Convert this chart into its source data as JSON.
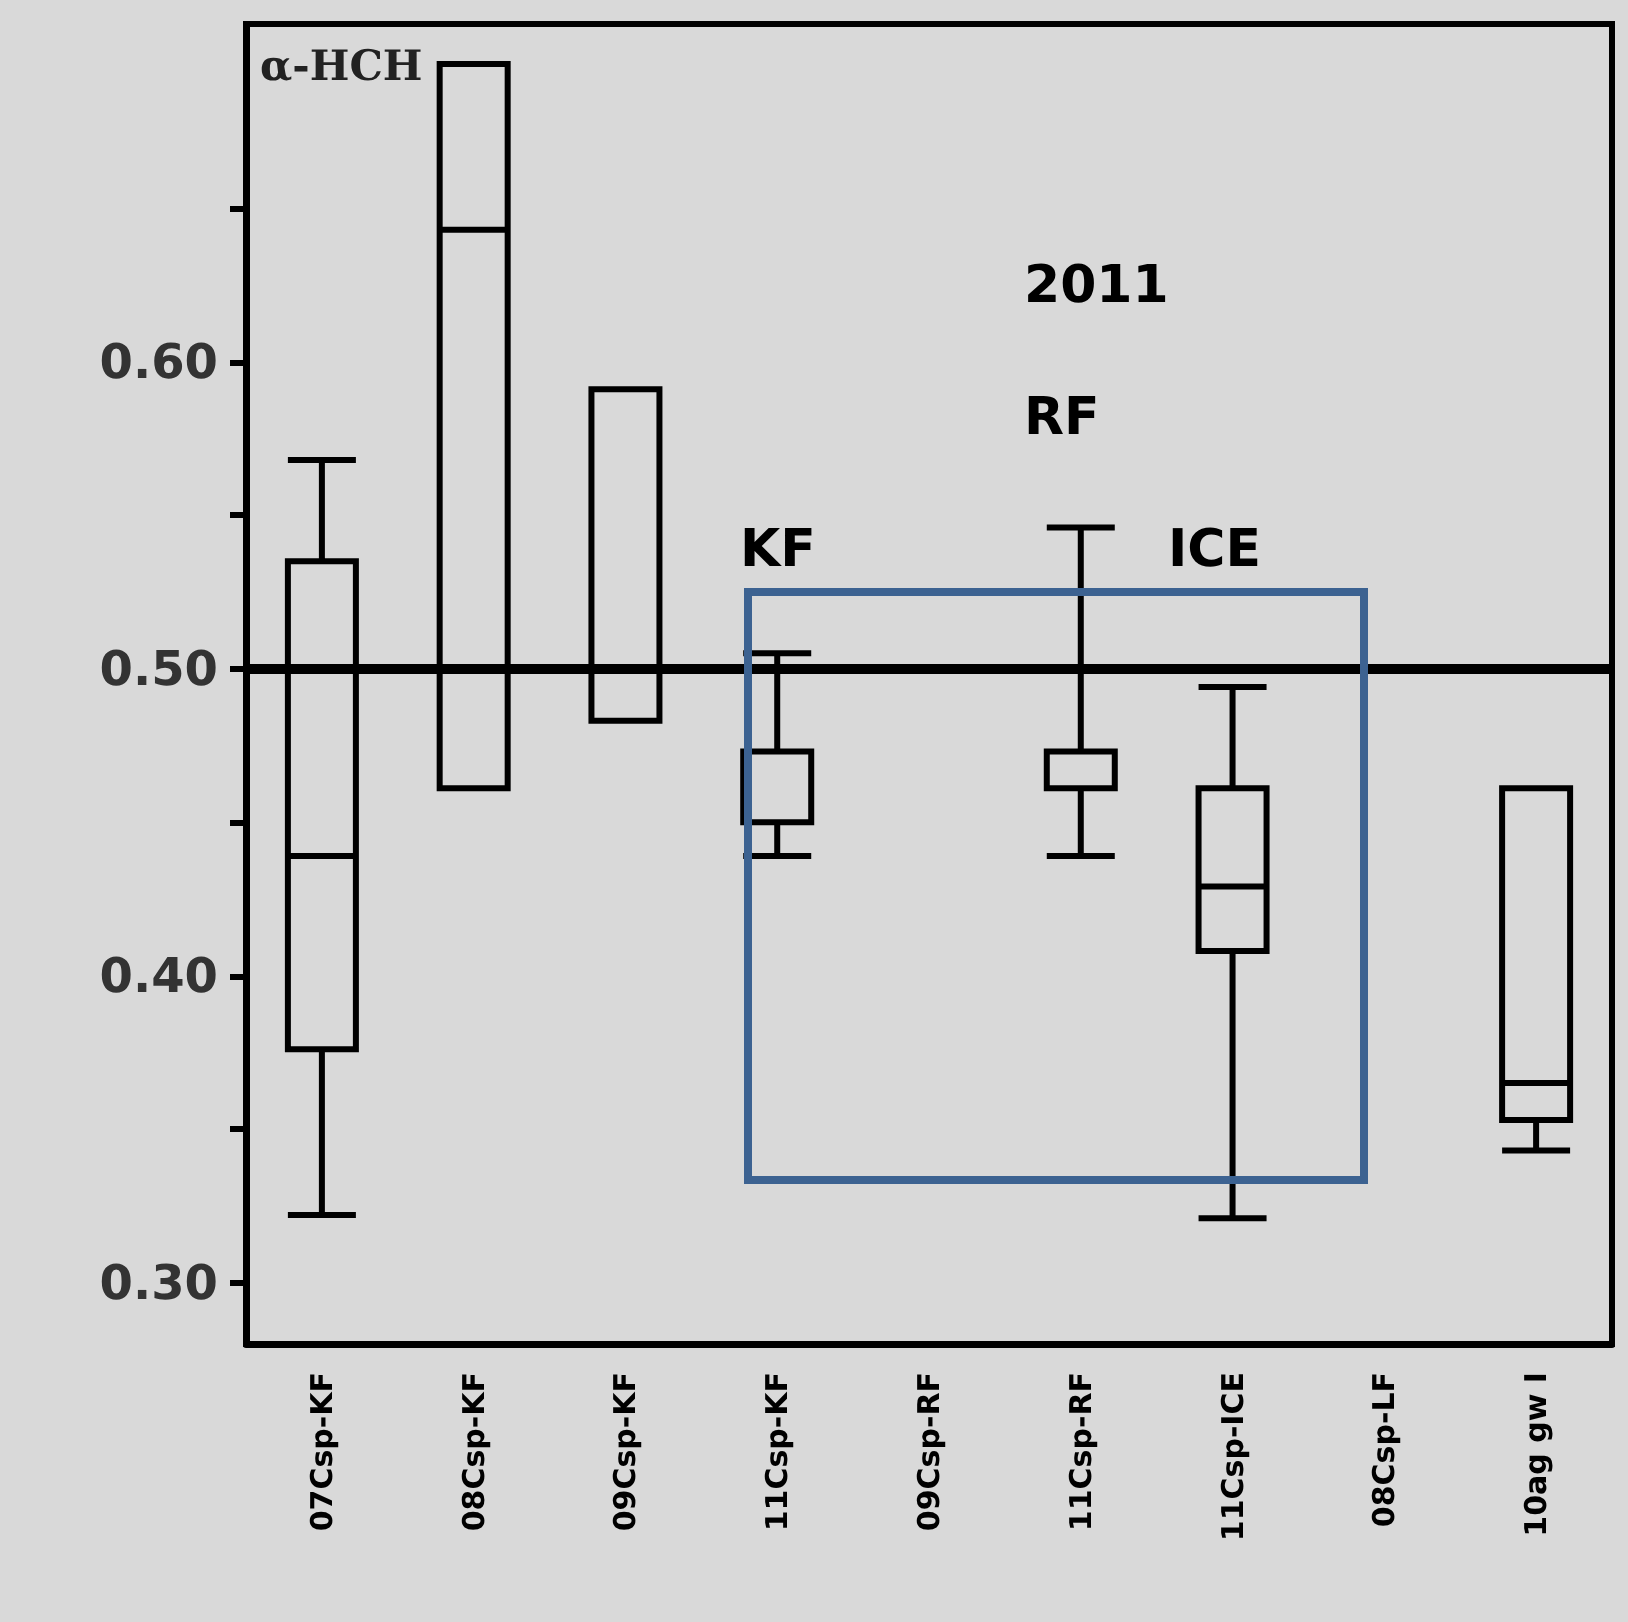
{
  "chart_data": {
    "type": "box",
    "title": "α-HCH",
    "categories": [
      "07Csp-KF",
      "08Csp-KF",
      "09Csp-KF",
      "11Csp-KF",
      "09Csp-RF",
      "11Csp-RF",
      "11Csp-ICE",
      "08Csp-LF",
      "10ag gw I"
    ],
    "boxes": [
      {
        "low": 0.322,
        "q1": 0.376,
        "median": 0.439,
        "q3": 0.535,
        "high": 0.568
      },
      {
        "low": 0.461,
        "q1": 0.461,
        "median": 0.643,
        "q3": 0.697,
        "high": 0.697
      },
      {
        "low": 0.483,
        "q1": 0.483,
        "median": 0.483,
        "q3": 0.591,
        "high": 0.591
      },
      {
        "low": 0.439,
        "q1": 0.45,
        "median": 0.45,
        "q3": 0.473,
        "high": 0.505
      },
      null,
      {
        "low": 0.439,
        "q1": 0.461,
        "median": 0.461,
        "q3": 0.473,
        "high": 0.546
      },
      {
        "low": 0.321,
        "q1": 0.408,
        "median": 0.429,
        "q3": 0.461,
        "high": 0.494
      },
      null,
      {
        "low": 0.343,
        "q1": 0.353,
        "median": 0.365,
        "q3": 0.461,
        "high": 0.461
      }
    ],
    "color": "#000000",
    "ylim": [
      0.28,
      0.71
    ],
    "yticks": [
      {
        "value": 0.3,
        "label": "0.30"
      },
      {
        "value": 0.35,
        "label": null
      },
      {
        "value": 0.4,
        "label": "0.40"
      },
      {
        "value": 0.45,
        "label": null
      },
      {
        "value": 0.5,
        "label": "0.50"
      },
      {
        "value": 0.55,
        "label": null
      },
      {
        "value": 0.6,
        "label": "0.60"
      },
      {
        "value": 0.65,
        "label": null
      }
    ],
    "ref_lines": [
      {
        "axis": "y",
        "value": 0.5,
        "color": "#000000"
      }
    ],
    "annotations": [
      "2011",
      "RF",
      "KF",
      "ICE"
    ],
    "grid": false
  }
}
